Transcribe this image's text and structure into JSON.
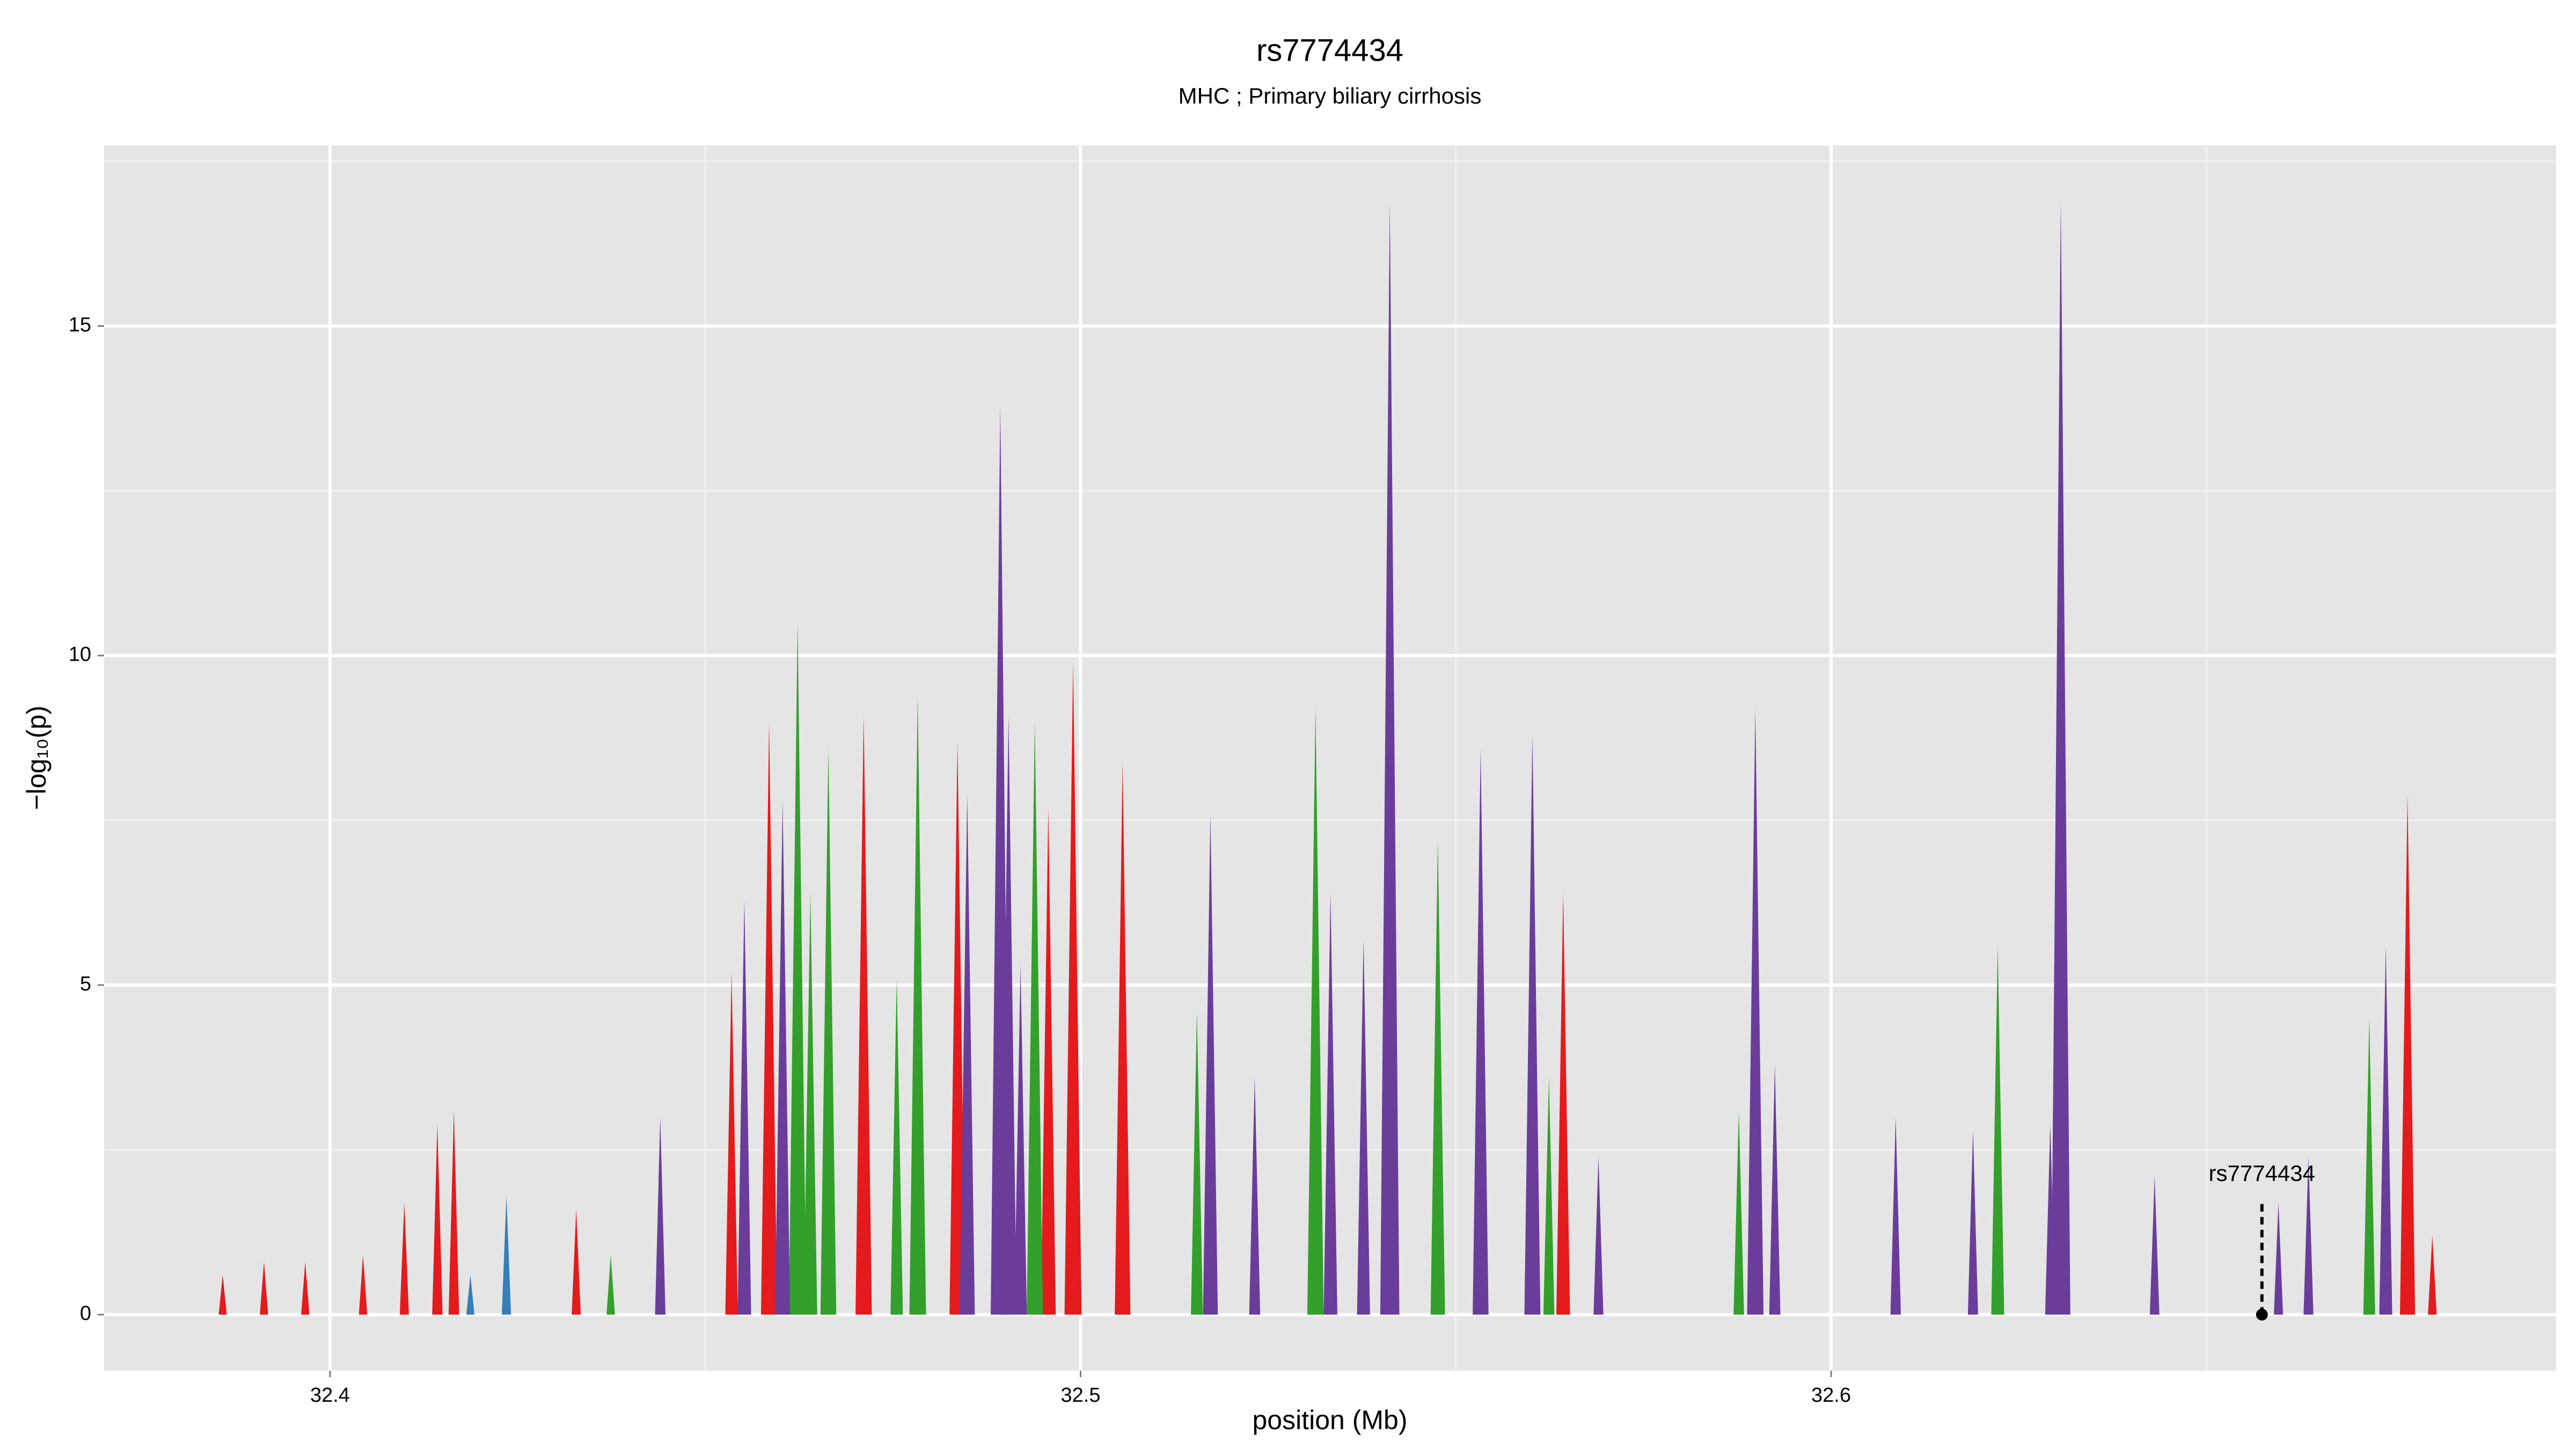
{
  "chart_data": {
    "type": "area",
    "title": "rs7774434",
    "subtitle": "MHC ; Primary biliary cirrhosis",
    "x_label": "position (Mb)",
    "y_label": "−log₁₀(p)",
    "xlim": [
      32.3699,
      32.6966
    ],
    "ylim": [
      -0.85,
      17.74
    ],
    "xticks": [
      32.4,
      32.5,
      32.6
    ],
    "yticks": [
      0,
      5,
      10,
      15
    ],
    "x_minor_grid": [
      32.45,
      32.55,
      32.65
    ],
    "y_minor_grid": [
      2.5,
      7.5,
      12.5,
      17.5
    ],
    "grid": true,
    "background": "#e5e5e5",
    "series": [
      {
        "name": "red",
        "color": "#e41a1c",
        "x": [
          32.3857,
          32.3912,
          32.3967,
          32.4044,
          32.4099,
          32.4143,
          32.4165,
          32.4328,
          32.4535,
          32.4585,
          32.4711,
          32.4836,
          32.4957,
          32.499,
          32.5056,
          32.5643,
          32.6768,
          32.6801
        ],
        "values": [
          0.6,
          0.8,
          0.8,
          0.9,
          1.7,
          2.9,
          3.1,
          1.6,
          5.2,
          9.0,
          9.1,
          8.7,
          7.7,
          9.9,
          8.4,
          6.4,
          7.9,
          1.2
        ]
      },
      {
        "name": "blue",
        "color": "#377eb8",
        "x": [
          32.4187,
          32.4235
        ],
        "values": [
          0.6,
          1.8
        ]
      },
      {
        "name": "green",
        "color": "#33a02c",
        "x": [
          32.4374,
          32.4623,
          32.464,
          32.4664,
          32.4755,
          32.4783,
          32.4939,
          32.5155,
          32.5313,
          32.5476,
          32.5624,
          32.5877,
          32.6222,
          32.6717
        ],
        "values": [
          0.9,
          10.5,
          6.4,
          8.6,
          5.1,
          9.4,
          9.0,
          4.6,
          9.2,
          7.2,
          3.6,
          3.1,
          5.6,
          4.5
        ]
      },
      {
        "name": "purple",
        "color": "#6a3d9a",
        "x": [
          32.444,
          32.4552,
          32.4603,
          32.4849,
          32.4893,
          32.4904,
          32.492,
          32.5173,
          32.5232,
          32.5333,
          32.5377,
          32.5412,
          32.5533,
          32.5602,
          32.569,
          32.5899,
          32.5925,
          32.6086,
          32.6189,
          32.6292,
          32.6306,
          32.6431,
          32.6596,
          32.6636,
          32.6739
        ],
        "values": [
          3.0,
          6.3,
          7.8,
          7.9,
          13.8,
          9.1,
          5.3,
          7.6,
          3.6,
          6.4,
          5.7,
          16.9,
          8.6,
          8.8,
          2.4,
          9.2,
          3.8,
          3.0,
          2.8,
          2.9,
          16.9,
          2.1,
          1.7,
          2.4,
          5.6
        ]
      }
    ],
    "annotation": {
      "text": "rs7774434",
      "x": 32.6574,
      "y": 0
    }
  }
}
